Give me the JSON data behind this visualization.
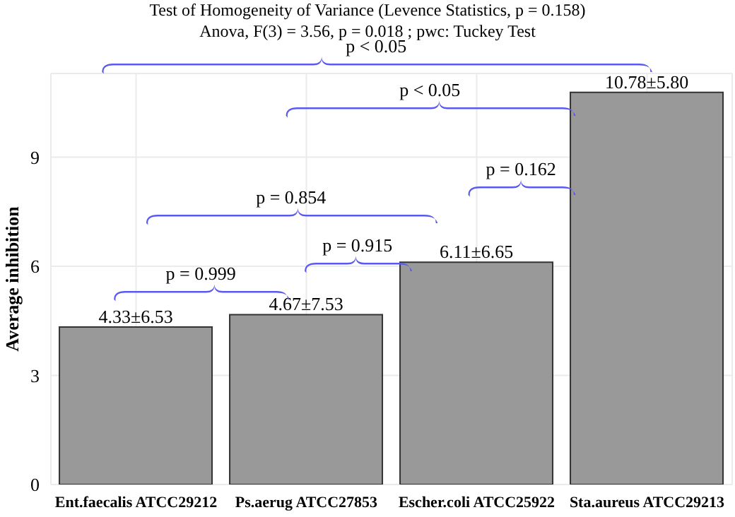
{
  "chart_data": {
    "type": "bar",
    "title": "Test of Homogeneity of Variance (Levence Statistics, p = 0.158)",
    "subtitle": "Anova, F(3) = 3.56, p = 0.018 ; pwc: Tuckey Test",
    "ylabel": "Average inhibition",
    "categories": [
      "Ent.faecalis ATCC29212",
      "Ps.aerug ATCC27853",
      "Escher.coli ATCC25922",
      "Sta.aureus ATCC29213"
    ],
    "values": [
      4.33,
      4.67,
      6.11,
      10.78
    ],
    "value_labels": [
      "4.33±6.53",
      "4.67±7.53",
      "6.11±6.65",
      "10.78±5.80"
    ],
    "color": "#999999",
    "ylim": [
      0,
      11.3
    ],
    "yticks": [
      0,
      3,
      6,
      9
    ],
    "grid": true,
    "annotations": [
      "p < 0.05",
      "p < 0.05",
      "p = 0.162",
      "p = 0.854",
      "p = 0.915",
      "p = 0.999"
    ]
  }
}
